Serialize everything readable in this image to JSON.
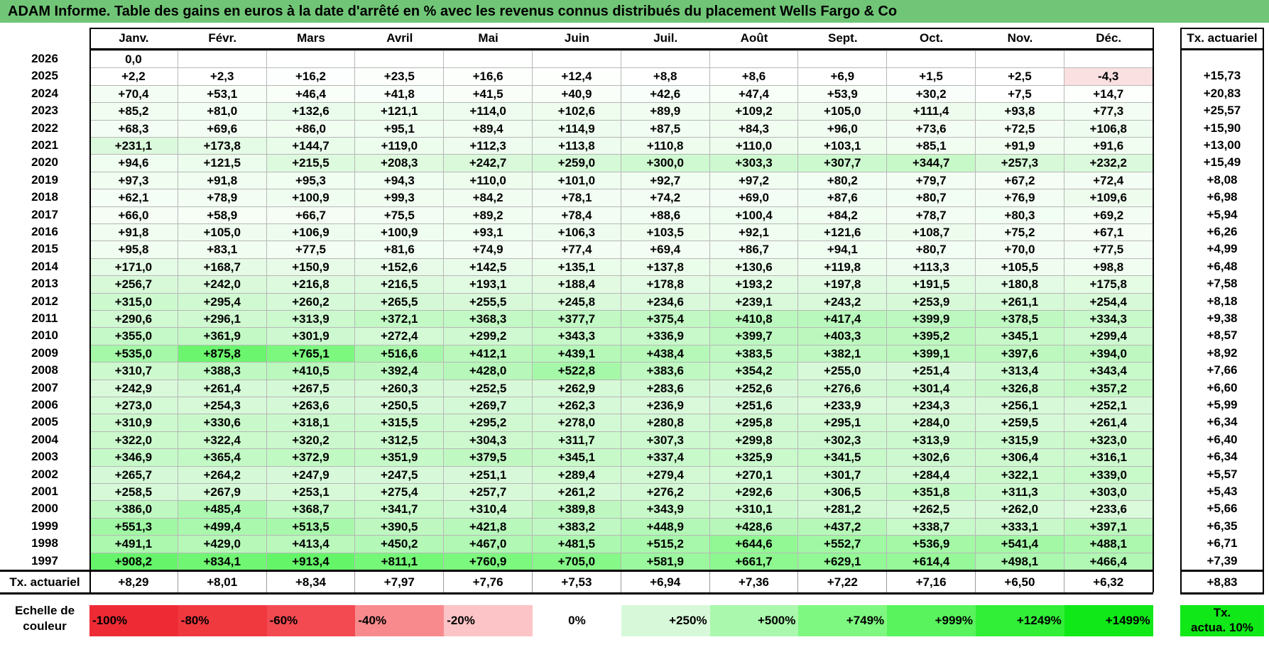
{
  "title": "ADAM Informe. Table des gains en euros à la date d'arrêté en % avec les revenus connus distribués du placement Wells Fargo & Co",
  "months": [
    "Janv.",
    "Févr.",
    "Mars",
    "Avril",
    "Mai",
    "Juin",
    "Juil.",
    "Août",
    "Sept.",
    "Oct.",
    "Nov.",
    "Déc."
  ],
  "rate_header": "Tx. actuariel",
  "rows": [
    {
      "year": "2026",
      "values": [
        "0,0",
        "",
        "",
        "",
        "",
        "",
        "",
        "",
        "",
        "",
        "",
        ""
      ],
      "rate": ""
    },
    {
      "year": "2025",
      "values": [
        "+2,2",
        "+2,3",
        "+16,2",
        "+23,5",
        "+16,6",
        "+12,4",
        "+8,8",
        "+8,6",
        "+6,9",
        "+1,5",
        "+2,5",
        "-4,3"
      ],
      "rate": "+15,73"
    },
    {
      "year": "2024",
      "values": [
        "+70,4",
        "+53,1",
        "+46,4",
        "+41,8",
        "+41,5",
        "+40,9",
        "+42,6",
        "+47,4",
        "+53,9",
        "+30,2",
        "+7,5",
        "+14,7"
      ],
      "rate": "+20,83"
    },
    {
      "year": "2023",
      "values": [
        "+85,2",
        "+81,0",
        "+132,6",
        "+121,1",
        "+114,0",
        "+102,6",
        "+89,9",
        "+109,2",
        "+105,0",
        "+111,4",
        "+93,8",
        "+77,3"
      ],
      "rate": "+25,57"
    },
    {
      "year": "2022",
      "values": [
        "+68,3",
        "+69,6",
        "+86,0",
        "+95,1",
        "+89,4",
        "+114,9",
        "+87,5",
        "+84,3",
        "+96,0",
        "+73,6",
        "+72,5",
        "+106,8"
      ],
      "rate": "+15,90"
    },
    {
      "year": "2021",
      "values": [
        "+231,1",
        "+173,8",
        "+144,7",
        "+119,0",
        "+112,3",
        "+113,8",
        "+110,8",
        "+110,0",
        "+103,1",
        "+85,1",
        "+91,9",
        "+91,6"
      ],
      "rate": "+13,00"
    },
    {
      "year": "2020",
      "values": [
        "+94,6",
        "+121,5",
        "+215,5",
        "+208,3",
        "+242,7",
        "+259,0",
        "+300,0",
        "+303,3",
        "+307,7",
        "+344,7",
        "+257,3",
        "+232,2"
      ],
      "rate": "+15,49"
    },
    {
      "year": "2019",
      "values": [
        "+97,3",
        "+91,8",
        "+95,3",
        "+94,3",
        "+110,0",
        "+101,0",
        "+92,7",
        "+97,2",
        "+80,2",
        "+79,7",
        "+67,2",
        "+72,4"
      ],
      "rate": "+8,08"
    },
    {
      "year": "2018",
      "values": [
        "+62,1",
        "+78,9",
        "+100,9",
        "+99,3",
        "+84,2",
        "+78,1",
        "+74,2",
        "+69,0",
        "+87,6",
        "+80,7",
        "+76,9",
        "+109,6"
      ],
      "rate": "+6,98"
    },
    {
      "year": "2017",
      "values": [
        "+66,0",
        "+58,9",
        "+66,7",
        "+75,5",
        "+89,2",
        "+78,4",
        "+88,6",
        "+100,4",
        "+84,2",
        "+78,7",
        "+80,3",
        "+69,2"
      ],
      "rate": "+5,94"
    },
    {
      "year": "2016",
      "values": [
        "+91,8",
        "+105,0",
        "+106,9",
        "+100,9",
        "+93,1",
        "+106,3",
        "+103,5",
        "+92,1",
        "+121,6",
        "+108,7",
        "+75,2",
        "+67,1"
      ],
      "rate": "+6,26"
    },
    {
      "year": "2015",
      "values": [
        "+95,8",
        "+83,1",
        "+77,5",
        "+81,6",
        "+74,9",
        "+77,4",
        "+69,4",
        "+86,7",
        "+94,1",
        "+80,7",
        "+70,0",
        "+77,5"
      ],
      "rate": "+4,99"
    },
    {
      "year": "2014",
      "values": [
        "+171,0",
        "+168,7",
        "+150,9",
        "+152,6",
        "+142,5",
        "+135,1",
        "+137,8",
        "+130,6",
        "+119,8",
        "+113,3",
        "+105,5",
        "+98,8"
      ],
      "rate": "+6,48"
    },
    {
      "year": "2013",
      "values": [
        "+256,7",
        "+242,0",
        "+216,8",
        "+216,5",
        "+193,1",
        "+188,4",
        "+178,8",
        "+193,2",
        "+197,8",
        "+191,5",
        "+180,8",
        "+175,8"
      ],
      "rate": "+7,58"
    },
    {
      "year": "2012",
      "values": [
        "+315,0",
        "+295,4",
        "+260,2",
        "+265,5",
        "+255,5",
        "+245,8",
        "+234,6",
        "+239,1",
        "+243,2",
        "+253,9",
        "+261,1",
        "+254,4"
      ],
      "rate": "+8,18"
    },
    {
      "year": "2011",
      "values": [
        "+290,6",
        "+296,1",
        "+313,9",
        "+372,1",
        "+368,3",
        "+377,7",
        "+375,4",
        "+410,8",
        "+417,4",
        "+399,9",
        "+378,5",
        "+334,3"
      ],
      "rate": "+9,38"
    },
    {
      "year": "2010",
      "values": [
        "+355,0",
        "+361,9",
        "+301,9",
        "+272,4",
        "+299,2",
        "+343,3",
        "+336,9",
        "+399,7",
        "+403,3",
        "+395,2",
        "+345,1",
        "+299,4"
      ],
      "rate": "+8,57"
    },
    {
      "year": "2009",
      "values": [
        "+535,0",
        "+875,8",
        "+765,1",
        "+516,6",
        "+412,1",
        "+439,1",
        "+438,4",
        "+383,5",
        "+382,1",
        "+399,1",
        "+397,6",
        "+394,0"
      ],
      "rate": "+8,92"
    },
    {
      "year": "2008",
      "values": [
        "+310,7",
        "+388,3",
        "+410,5",
        "+392,4",
        "+428,0",
        "+522,8",
        "+383,6",
        "+354,2",
        "+255,0",
        "+251,4",
        "+313,4",
        "+343,4"
      ],
      "rate": "+7,66"
    },
    {
      "year": "2007",
      "values": [
        "+242,9",
        "+261,4",
        "+267,5",
        "+260,3",
        "+252,5",
        "+262,9",
        "+283,6",
        "+252,6",
        "+276,6",
        "+301,4",
        "+326,8",
        "+357,2"
      ],
      "rate": "+6,60"
    },
    {
      "year": "2006",
      "values": [
        "+273,0",
        "+254,3",
        "+263,6",
        "+250,5",
        "+269,7",
        "+262,3",
        "+236,9",
        "+251,6",
        "+233,9",
        "+234,3",
        "+256,1",
        "+252,1"
      ],
      "rate": "+5,99"
    },
    {
      "year": "2005",
      "values": [
        "+310,9",
        "+330,6",
        "+318,1",
        "+315,5",
        "+295,2",
        "+278,0",
        "+280,8",
        "+295,8",
        "+295,1",
        "+284,0",
        "+259,5",
        "+261,4"
      ],
      "rate": "+6,34"
    },
    {
      "year": "2004",
      "values": [
        "+322,0",
        "+322,4",
        "+320,2",
        "+312,5",
        "+304,3",
        "+311,7",
        "+307,3",
        "+299,8",
        "+302,3",
        "+313,9",
        "+315,9",
        "+323,0"
      ],
      "rate": "+6,40"
    },
    {
      "year": "2003",
      "values": [
        "+346,9",
        "+365,4",
        "+372,9",
        "+351,9",
        "+379,5",
        "+345,1",
        "+337,4",
        "+325,9",
        "+341,5",
        "+302,6",
        "+306,4",
        "+316,1"
      ],
      "rate": "+6,34"
    },
    {
      "year": "2002",
      "values": [
        "+265,7",
        "+264,2",
        "+247,9",
        "+247,5",
        "+251,1",
        "+289,4",
        "+279,4",
        "+270,1",
        "+301,7",
        "+284,4",
        "+322,1",
        "+339,0"
      ],
      "rate": "+5,57"
    },
    {
      "year": "2001",
      "values": [
        "+258,5",
        "+267,9",
        "+253,1",
        "+275,4",
        "+257,7",
        "+261,2",
        "+276,2",
        "+292,6",
        "+306,5",
        "+351,8",
        "+311,3",
        "+303,0"
      ],
      "rate": "+5,43"
    },
    {
      "year": "2000",
      "values": [
        "+386,0",
        "+485,4",
        "+368,7",
        "+341,7",
        "+310,4",
        "+389,8",
        "+343,9",
        "+310,1",
        "+281,2",
        "+262,5",
        "+262,0",
        "+233,6"
      ],
      "rate": "+5,66"
    },
    {
      "year": "1999",
      "values": [
        "+551,3",
        "+499,4",
        "+513,5",
        "+390,5",
        "+421,8",
        "+383,2",
        "+448,9",
        "+428,6",
        "+437,2",
        "+338,7",
        "+333,1",
        "+397,1"
      ],
      "rate": "+6,35"
    },
    {
      "year": "1998",
      "values": [
        "+491,1",
        "+429,0",
        "+413,4",
        "+450,2",
        "+467,0",
        "+481,5",
        "+515,2",
        "+644,6",
        "+552,7",
        "+536,9",
        "+541,4",
        "+488,1"
      ],
      "rate": "+6,71"
    },
    {
      "year": "1997",
      "values": [
        "+908,2",
        "+834,1",
        "+913,4",
        "+811,1",
        "+760,9",
        "+705,0",
        "+581,9",
        "+661,7",
        "+629,1",
        "+614,4",
        "+498,1",
        "+466,4"
      ],
      "rate": "+7,39"
    }
  ],
  "footer": {
    "label": "Tx. actuariel",
    "values": [
      "+8,29",
      "+8,01",
      "+8,34",
      "+7,97",
      "+7,76",
      "+7,53",
      "+6,94",
      "+7,36",
      "+7,22",
      "+7,16",
      "+6,50",
      "+6,32"
    ],
    "total": "+8,83"
  },
  "scale": {
    "label_line1": "Echelle de",
    "label_line2": "couleur",
    "items": [
      {
        "text": "-100%",
        "color": "#ee2b34",
        "align": "left"
      },
      {
        "text": "-80%",
        "color": "#f0383f",
        "align": "left"
      },
      {
        "text": "-60%",
        "color": "#f34a51",
        "align": "left"
      },
      {
        "text": "-40%",
        "color": "#f88a8d",
        "align": "left"
      },
      {
        "text": "-20%",
        "color": "#fcc4c6",
        "align": "left"
      },
      {
        "text": "0%",
        "color": "#ffffff",
        "align": "center"
      },
      {
        "text": "+250%",
        "color": "#d8f9d9",
        "align": "right"
      },
      {
        "text": "+500%",
        "color": "#aaf8ad",
        "align": "right"
      },
      {
        "text": "+749%",
        "color": "#7ef880",
        "align": "right"
      },
      {
        "text": "+999%",
        "color": "#58f35d",
        "align": "right"
      },
      {
        "text": "+1249%",
        "color": "#31ef37",
        "align": "right"
      },
      {
        "text": "+1499%",
        "color": "#10e818",
        "align": "right"
      }
    ],
    "rate_line1": "Tx.",
    "rate_line2": "actua. 10%",
    "rate_color": "#10e818"
  },
  "colors": {
    "title_bar": "#70c676",
    "negative_cell": "#fbe0e1",
    "gridline": "#9a9a9a"
  }
}
